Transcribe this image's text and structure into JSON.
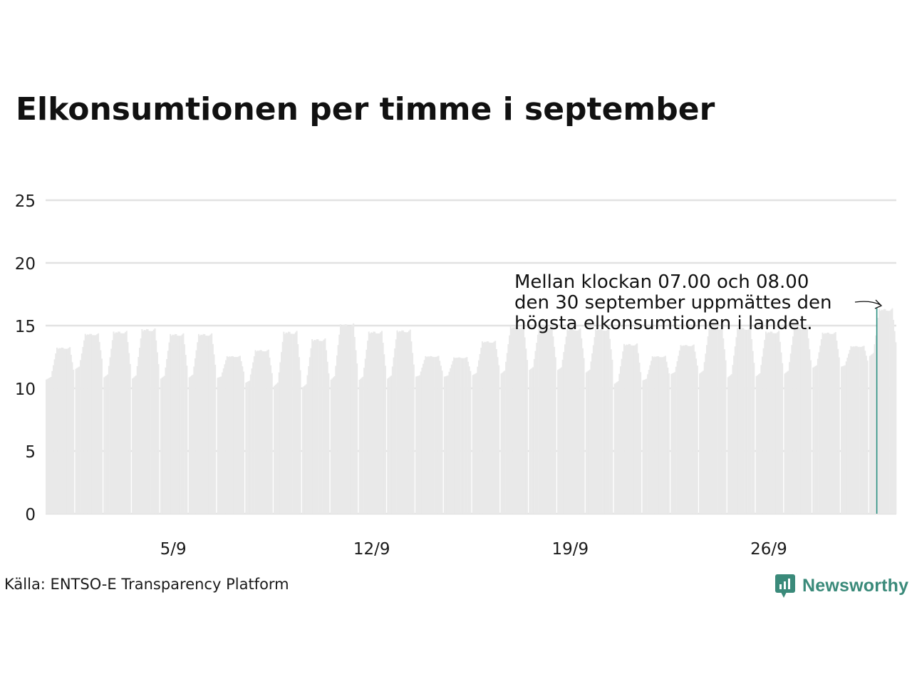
{
  "header": {
    "title": "Elkonsumtionen per timme i september"
  },
  "footer": {
    "source": "Källa: ENTSO-E Transparency Platform",
    "brand": "Newsworthy"
  },
  "colors": {
    "bars": "#e9e9e9",
    "highlight": "#2a8f80",
    "grid": "#e2e2e2",
    "brand": "#3a8a7a"
  },
  "annotation": {
    "lines": [
      "Mellan klockan 07.00 och 08.00",
      "den 30 september uppmättes den",
      "högsta elkonsumtionen i landet."
    ]
  },
  "chart_data": {
    "type": "area",
    "title": "Elkonsumtionen per timme i september",
    "xlabel": "",
    "ylabel": "",
    "ylim": [
      0,
      25
    ],
    "yticks": [
      0,
      5,
      10,
      15,
      20,
      25
    ],
    "xticks": [
      {
        "label": "5/9",
        "day": 5
      },
      {
        "label": "12/9",
        "day": 12
      },
      {
        "label": "19/9",
        "day": 19
      },
      {
        "label": "26/9",
        "day": 26
      }
    ],
    "grid": true,
    "resolution": "hourly",
    "days": [
      1,
      2,
      3,
      4,
      5,
      6,
      7,
      8,
      9,
      10,
      11,
      12,
      13,
      14,
      15,
      16,
      17,
      18,
      19,
      20,
      21,
      22,
      23,
      24,
      25,
      26,
      27,
      28,
      29,
      30
    ],
    "daily_min": [
      10.7,
      11.5,
      10.8,
      10.7,
      10.7,
      10.8,
      10.8,
      10.4,
      10.1,
      10.0,
      10.6,
      10.6,
      10.7,
      10.9,
      10.9,
      11.0,
      11.1,
      11.4,
      11.4,
      11.2,
      10.3,
      10.6,
      11.1,
      11.1,
      10.8,
      10.9,
      11.1,
      11.6,
      11.7,
      12.5
    ],
    "daily_max": [
      13.3,
      14.4,
      14.6,
      14.8,
      14.4,
      14.4,
      12.6,
      13.1,
      14.6,
      14.0,
      15.2,
      14.6,
      14.7,
      12.6,
      12.5,
      13.8,
      15.0,
      15.0,
      14.8,
      14.8,
      13.6,
      12.6,
      13.5,
      14.9,
      14.9,
      14.6,
      14.9,
      14.5,
      13.4,
      16.4
    ],
    "peak": {
      "day": 30,
      "hour": "07.00-08.00",
      "value": 16.4
    }
  }
}
